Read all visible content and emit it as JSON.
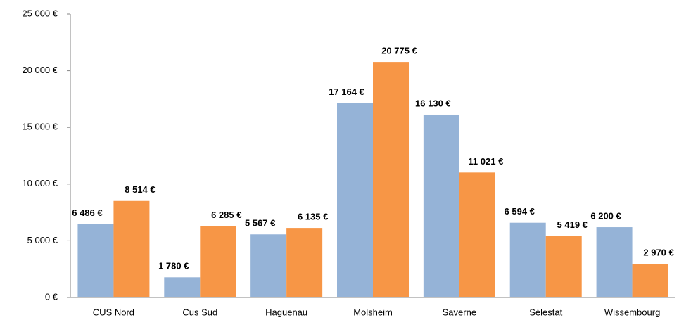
{
  "chart_data": {
    "type": "bar",
    "categories": [
      "CUS Nord",
      "Cus Sud",
      "Haguenau",
      "Molsheim",
      "Saverne",
      "Sélestat",
      "Wissembourg"
    ],
    "series": [
      {
        "color": "#95b3d7",
        "label_color": "#558ed5",
        "values": [
          6486,
          1780,
          5567,
          17164,
          16130,
          6594,
          6200
        ],
        "value_labels": [
          "6 486 €",
          "1 780 €",
          "5 567 €",
          "17 164 €",
          "16 130 €",
          "6 594 €",
          "6 200 €"
        ]
      },
      {
        "color": "#f79646",
        "label_color": "#f79646",
        "values": [
          8514,
          6285,
          6135,
          20775,
          11021,
          5419,
          2970
        ],
        "value_labels": [
          "8 514 €",
          "6 285 €",
          "6 135 €",
          "20 775 €",
          "11 021 €",
          "5 419 €",
          "2 970 €"
        ]
      }
    ],
    "ylim": [
      0,
      25000
    ],
    "yticks": [
      {
        "value": 0,
        "label": "0 €"
      },
      {
        "value": 5000,
        "label": "5 000 €"
      },
      {
        "value": 10000,
        "label": "10 000 €"
      },
      {
        "value": 15000,
        "label": "15 000 €"
      },
      {
        "value": 20000,
        "label": "20 000 €"
      },
      {
        "value": 25000,
        "label": "25 000 €"
      }
    ],
    "grid": false
  }
}
